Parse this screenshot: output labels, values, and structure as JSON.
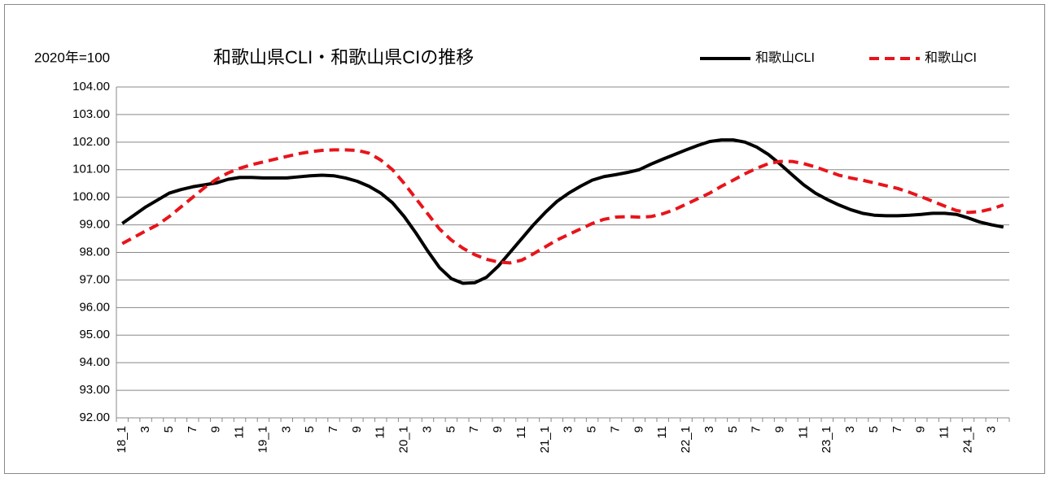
{
  "chart_data": {
    "type": "line",
    "title": "和歌山県CLI・和歌山県CIの推移",
    "subtitle": "2020年=100",
    "categories": [
      "18_1",
      null,
      "3",
      null,
      "5",
      null,
      "7",
      null,
      "9",
      null,
      "11",
      null,
      "19_1",
      null,
      "3",
      null,
      "5",
      null,
      "7",
      null,
      "9",
      null,
      "11",
      null,
      "20_1",
      null,
      "3",
      null,
      "5",
      null,
      "7",
      null,
      "9",
      null,
      "11",
      null,
      "21_1",
      null,
      "3",
      null,
      "5",
      null,
      "7",
      null,
      "9",
      null,
      "11",
      null,
      "22_1",
      null,
      "3",
      null,
      "5",
      null,
      "7",
      null,
      "9",
      null,
      "11",
      null,
      "23_1",
      null,
      "3",
      null,
      "5",
      null,
      "7",
      null,
      "9",
      null,
      "11",
      null,
      "24_1",
      null,
      "3",
      null
    ],
    "series": [
      {
        "name": "和歌山CLI",
        "color": "#000000",
        "dash": false,
        "values": [
          99.05,
          99.35,
          99.65,
          99.9,
          100.15,
          100.28,
          100.38,
          100.45,
          100.52,
          100.65,
          100.72,
          100.72,
          100.7,
          100.7,
          100.7,
          100.74,
          100.78,
          100.8,
          100.78,
          100.7,
          100.58,
          100.4,
          100.15,
          99.8,
          99.3,
          98.7,
          98.05,
          97.45,
          97.05,
          96.88,
          96.9,
          97.1,
          97.5,
          98.0,
          98.5,
          99.0,
          99.45,
          99.85,
          100.15,
          100.4,
          100.62,
          100.75,
          100.82,
          100.9,
          101.0,
          101.2,
          101.38,
          101.55,
          101.72,
          101.88,
          102.02,
          102.08,
          102.08,
          102.0,
          101.82,
          101.55,
          101.2,
          100.82,
          100.45,
          100.15,
          99.92,
          99.72,
          99.55,
          99.42,
          99.35,
          99.33,
          99.33,
          99.35,
          99.38,
          99.42,
          99.42,
          99.38,
          99.25,
          99.1,
          99.0,
          98.92
        ]
      },
      {
        "name": "和歌山CI",
        "color": "#e8141b",
        "dash": true,
        "values": [
          98.32,
          98.55,
          98.78,
          99.0,
          99.3,
          99.65,
          100.0,
          100.35,
          100.65,
          100.88,
          101.05,
          101.18,
          101.28,
          101.38,
          101.48,
          101.58,
          101.65,
          101.7,
          101.72,
          101.72,
          101.7,
          101.6,
          101.35,
          101.0,
          100.5,
          99.95,
          99.4,
          98.85,
          98.45,
          98.15,
          97.92,
          97.75,
          97.65,
          97.62,
          97.72,
          97.95,
          98.2,
          98.45,
          98.65,
          98.85,
          99.05,
          99.2,
          99.28,
          99.3,
          99.28,
          99.3,
          99.4,
          99.55,
          99.75,
          99.95,
          100.15,
          100.4,
          100.62,
          100.85,
          101.05,
          101.22,
          101.3,
          101.3,
          101.22,
          101.1,
          100.95,
          100.8,
          100.7,
          100.62,
          100.52,
          100.42,
          100.32,
          100.18,
          100.02,
          99.85,
          99.68,
          99.52,
          99.45,
          99.48,
          99.58,
          99.72
        ]
      }
    ],
    "ylim": [
      92,
      104
    ],
    "yticks": [
      {
        "value": 92,
        "label": "92.00"
      },
      {
        "value": 93,
        "label": "93.00"
      },
      {
        "value": 94,
        "label": "94.00"
      },
      {
        "value": 95,
        "label": "95.00"
      },
      {
        "value": 96,
        "label": "96.00"
      },
      {
        "value": 97,
        "label": "97.00"
      },
      {
        "value": 98,
        "label": "98.00"
      },
      {
        "value": 99,
        "label": "99.00"
      },
      {
        "value": 100,
        "label": "100.00"
      },
      {
        "value": 101,
        "label": "101.00"
      },
      {
        "value": 102,
        "label": "102.00"
      },
      {
        "value": 103,
        "label": "103.00"
      },
      {
        "value": 104,
        "label": "104.00"
      }
    ],
    "grid": true,
    "legend": "top-right"
  }
}
